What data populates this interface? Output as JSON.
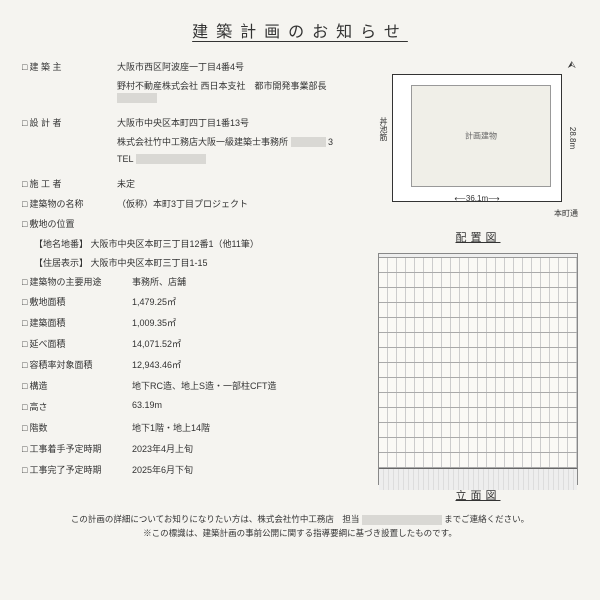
{
  "title": "建築計画のお知らせ",
  "fields": {
    "owner": {
      "label": "建 築 主",
      "lines": [
        "大阪市西区阿波座一丁目4番4号",
        "野村不動産株式会社 西日本支社　都市開発事業部長"
      ]
    },
    "designer": {
      "label": "設 計 者",
      "lines": [
        "大阪市中央区本町四丁目1番13号",
        "株式会社竹中工務店大阪一級建築士事務所",
        "TEL"
      ]
    },
    "contractor": {
      "label": "施 工 者",
      "value": "未定"
    },
    "building_name": {
      "label": "建築物の名称",
      "value": "（仮称）本町3丁目プロジェクト"
    },
    "site_location": {
      "label": "敷地の位置"
    },
    "lot_number": {
      "label": "【地名地番】",
      "value": "大阪市中央区本町三丁目12番1（他11筆）"
    },
    "address": {
      "label": "【住居表示】",
      "value": "大阪市中央区本町三丁目1-15"
    },
    "main_use": {
      "label": "建築物の主要用途",
      "value": "事務所、店舗"
    }
  },
  "metrics": [
    {
      "label": "敷地面積",
      "value": "1,479.25㎡"
    },
    {
      "label": "建築面積",
      "value": "1,009.35㎡"
    },
    {
      "label": "延べ面積",
      "value": "14,071.52㎡"
    },
    {
      "label": "容積率対象面積",
      "value": "12,943.46㎡"
    },
    {
      "label": "構造",
      "value": "地下RC造、地上S造・一部柱CFT造"
    },
    {
      "label": "高さ",
      "value": "63.19m"
    },
    {
      "label": "階数",
      "value": "地下1階・地上14階"
    },
    {
      "label": "工事着手予定時期",
      "value": "2023年4月上旬"
    },
    {
      "label": "工事完了予定時期",
      "value": "2025年6月下旬"
    }
  ],
  "site_plan": {
    "label": "配置図",
    "building_label": "計画建物",
    "dim_w": "36.1m",
    "dim_h": "28.8m",
    "road_left": "丼池筋",
    "road_bottom": "本町通"
  },
  "elevation": {
    "label": "立面図",
    "floors_above": 14
  },
  "footer": {
    "line1_a": "この計画の詳細についてお知りになりたい方は、株式会社竹中工務店　担当",
    "line1_b": "までご連絡ください。",
    "line2": "※この標識は、建築計画の事前公開に関する指導要綱に基づき設置したものです。"
  }
}
